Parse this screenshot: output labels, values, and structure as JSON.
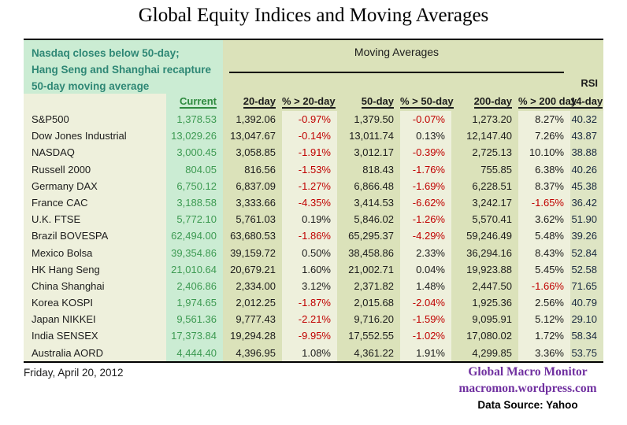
{
  "title": "Global Equity Indices and Moving Averages",
  "annotation": {
    "lines": [
      "Nasdaq closes below 50-day;",
      "Hang Seng and Shanghai recapture",
      "50-day moving average"
    ]
  },
  "header": {
    "group_label": "Moving Averages",
    "rsi_label": "RSI",
    "columns": {
      "current": "Current",
      "ma20": "20-day",
      "pct20": "% > 20-day",
      "ma50": "50-day",
      "pct50": "% > 50-day",
      "ma200": "200-day",
      "pct200": "% > 200 day",
      "rsi": "14-day"
    }
  },
  "table": {
    "rows": [
      {
        "name": "S&P500",
        "current": "1,378.53",
        "ma20": "1,392.06",
        "pct20": "-0.97%",
        "ma50": "1,379.50",
        "pct50": "-0.07%",
        "ma200": "1,273.20",
        "pct200": "8.27%",
        "rsi": "40.32"
      },
      {
        "name": "Dow Jones Industrial",
        "current": "13,029.26",
        "ma20": "13,047.67",
        "pct20": "-0.14%",
        "ma50": "13,011.74",
        "pct50": "0.13%",
        "ma200": "12,147.40",
        "pct200": "7.26%",
        "rsi": "43.87"
      },
      {
        "name": "NASDAQ",
        "current": "3,000.45",
        "ma20": "3,058.85",
        "pct20": "-1.91%",
        "ma50": "3,012.17",
        "pct50": "-0.39%",
        "ma200": "2,725.13",
        "pct200": "10.10%",
        "rsi": "38.88"
      },
      {
        "name": "Russell 2000",
        "current": "804.05",
        "ma20": "816.56",
        "pct20": "-1.53%",
        "ma50": "818.43",
        "pct50": "-1.76%",
        "ma200": "755.85",
        "pct200": "6.38%",
        "rsi": "40.26"
      },
      {
        "name": "Germany DAX",
        "current": "6,750.12",
        "ma20": "6,837.09",
        "pct20": "-1.27%",
        "ma50": "6,866.48",
        "pct50": "-1.69%",
        "ma200": "6,228.51",
        "pct200": "8.37%",
        "rsi": "45.38"
      },
      {
        "name": "France CAC",
        "current": "3,188.58",
        "ma20": "3,333.66",
        "pct20": "-4.35%",
        "ma50": "3,414.53",
        "pct50": "-6.62%",
        "ma200": "3,242.17",
        "pct200": "-1.65%",
        "rsi": "36.42"
      },
      {
        "name": "U.K. FTSE",
        "current": "5,772.10",
        "ma20": "5,761.03",
        "pct20": "0.19%",
        "ma50": "5,846.02",
        "pct50": "-1.26%",
        "ma200": "5,570.41",
        "pct200": "3.62%",
        "rsi": "51.90"
      },
      {
        "name": "Brazil BOVESPA",
        "current": "62,494.00",
        "ma20": "63,680.53",
        "pct20": "-1.86%",
        "ma50": "65,295.37",
        "pct50": "-4.29%",
        "ma200": "59,246.49",
        "pct200": "5.48%",
        "rsi": "39.26"
      },
      {
        "name": "Mexico Bolsa",
        "current": "39,354.86",
        "ma20": "39,159.72",
        "pct20": "0.50%",
        "ma50": "38,458.86",
        "pct50": "2.33%",
        "ma200": "36,294.16",
        "pct200": "8.43%",
        "rsi": "52.84"
      },
      {
        "name": "HK  Hang Seng",
        "current": "21,010.64",
        "ma20": "20,679.21",
        "pct20": "1.60%",
        "ma50": "21,002.71",
        "pct50": "0.04%",
        "ma200": "19,923.88",
        "pct200": "5.45%",
        "rsi": "52.58"
      },
      {
        "name": "China Shanghai",
        "current": "2,406.86",
        "ma20": "2,334.00",
        "pct20": "3.12%",
        "ma50": "2,371.82",
        "pct50": "1.48%",
        "ma200": "2,447.50",
        "pct200": "-1.66%",
        "rsi": "71.65"
      },
      {
        "name": "Korea KOSPI",
        "current": "1,974.65",
        "ma20": "2,012.25",
        "pct20": "-1.87%",
        "ma50": "2,015.68",
        "pct50": "-2.04%",
        "ma200": "1,925.36",
        "pct200": "2.56%",
        "rsi": "40.79"
      },
      {
        "name": "Japan NIKKEI",
        "current": "9,561.36",
        "ma20": "9,777.43",
        "pct20": "-2.21%",
        "ma50": "9,716.20",
        "pct50": "-1.59%",
        "ma200": "9,095.91",
        "pct200": "5.12%",
        "rsi": "29.10"
      },
      {
        "name": "India SENSEX",
        "current": "17,373.84",
        "ma20": "19,294.28",
        "pct20": "-9.95%",
        "ma50": "17,552.55",
        "pct50": "-1.02%",
        "ma200": "17,080.02",
        "pct200": "1.72%",
        "rsi": "58.34"
      },
      {
        "name": "Australia AORD",
        "current": "4,444.40",
        "ma20": "4,396.95",
        "pct20": "1.08%",
        "ma50": "4,361.22",
        "pct50": "1.91%",
        "ma200": "4,299.85",
        "pct200": "3.36%",
        "rsi": "53.75"
      }
    ]
  },
  "footer": {
    "date": "Friday, April 20, 2012",
    "brand": "Global Macro Monitor",
    "url": "macromon.wordpress.com",
    "source": "Data Source: Yahoo"
  },
  "colors": {
    "mint_band": "#cbecd3",
    "olive_band": "#dbe2ba",
    "cream_band": "#eef0dc",
    "annotation_text": "#2e8775",
    "current_value_text": "#3d9a52",
    "negative_text": "#c00000",
    "brand_purple": "#7030a0"
  }
}
